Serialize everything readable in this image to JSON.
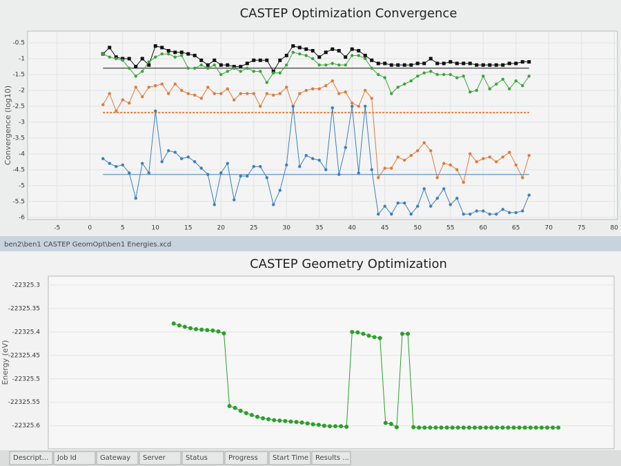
{
  "chart_data": [
    {
      "type": "line",
      "title": "CASTEP Optimization Convergence",
      "y_label": "Convergence (log10)",
      "xlim": [
        -9.5,
        80.5
      ],
      "xticks": [
        -5,
        0,
        5,
        10,
        15,
        20,
        25,
        30,
        35,
        40,
        45,
        50,
        55,
        60,
        65,
        70,
        75,
        80
      ],
      "ylim": [
        -6.07,
        -0.13
      ],
      "yticks": [
        -0.5,
        -1,
        -1.5,
        -2,
        -2.5,
        -3,
        -3.5,
        -4,
        -4.5,
        -5,
        -5.5,
        -6
      ],
      "grid": true,
      "x": [
        2,
        3,
        4,
        5,
        6,
        7,
        8,
        9,
        10,
        11,
        12,
        13,
        14,
        15,
        16,
        17,
        18,
        19,
        20,
        21,
        22,
        23,
        24,
        25,
        26,
        27,
        28,
        29,
        30,
        31,
        32,
        33,
        34,
        35,
        36,
        37,
        38,
        39,
        40,
        41,
        42,
        43,
        44,
        45,
        46,
        47,
        48,
        49,
        50,
        51,
        52,
        53,
        54,
        55,
        56,
        57,
        58,
        59,
        60,
        61,
        62,
        63,
        64,
        65,
        66,
        67
      ],
      "series": [
        {
          "color": "#111111",
          "marker": "square",
          "threshold": -1.3,
          "threshold_style": "solid",
          "values": [
            -0.85,
            -0.65,
            -0.95,
            -1.0,
            -1.0,
            -1.25,
            -1.0,
            -1.2,
            -0.6,
            -0.65,
            -0.75,
            -0.8,
            -0.8,
            -0.85,
            -0.9,
            -1.05,
            -1.2,
            -1.05,
            -1.2,
            -1.2,
            -1.25,
            -1.25,
            -1.15,
            -1.05,
            -1.05,
            -1.05,
            -1.4,
            -1.05,
            -0.9,
            -0.6,
            -0.65,
            -0.7,
            -0.75,
            -0.95,
            -0.8,
            -0.7,
            -0.75,
            -0.95,
            -0.7,
            -0.75,
            -0.9,
            -1.05,
            -1.15,
            -1.15,
            -1.2,
            -1.2,
            -1.2,
            -1.2,
            -1.15,
            -1.15,
            -1.0,
            -1.15,
            -1.15,
            -1.1,
            -1.15,
            -1.15,
            -1.15,
            -1.2,
            -1.2,
            -1.2,
            -1.2,
            -1.2,
            -1.15,
            -1.15,
            -1.1,
            -1.1
          ]
        },
        {
          "color": "#3aa43a",
          "marker": "circle",
          "values": [
            -0.85,
            -0.95,
            -1.0,
            -1.05,
            -1.3,
            -1.55,
            -1.4,
            -1.1,
            -0.95,
            -0.85,
            -0.85,
            -0.95,
            -0.9,
            -1.3,
            -1.3,
            -1.2,
            -1.3,
            -1.2,
            -1.5,
            -1.4,
            -1.3,
            -1.4,
            -1.3,
            -1.4,
            -1.4,
            -1.75,
            -1.45,
            -1.45,
            -1.2,
            -0.8,
            -0.85,
            -0.9,
            -1.0,
            -1.2,
            -1.2,
            -1.15,
            -1.2,
            -1.2,
            -0.9,
            -0.9,
            -1.0,
            -1.3,
            -1.5,
            -1.6,
            -2.1,
            -1.9,
            -1.8,
            -1.7,
            -1.55,
            -1.45,
            -1.4,
            -1.5,
            -1.5,
            -1.5,
            -1.6,
            -1.55,
            -2.05,
            -2.0,
            -1.55,
            -1.95,
            -1.8,
            -1.65,
            -1.95,
            -1.7,
            -1.85,
            -1.55
          ]
        },
        {
          "color": "#e07a3c",
          "marker": "circle",
          "threshold": -2.7,
          "threshold_style": "dashed",
          "values": [
            -2.45,
            -2.1,
            -2.65,
            -2.3,
            -2.4,
            -1.9,
            -2.2,
            -1.9,
            -1.85,
            -1.8,
            -2.1,
            -1.8,
            -2.0,
            -2.1,
            -2.15,
            -2.25,
            -1.9,
            -2.1,
            -2.1,
            -1.95,
            -2.3,
            -2.1,
            -2.1,
            -2.1,
            -2.5,
            -2.1,
            -2.15,
            -2.1,
            -1.9,
            -2.5,
            -2.1,
            -2.0,
            -1.95,
            -1.95,
            -1.85,
            -1.7,
            -2.1,
            -2.05,
            -2.4,
            -2.5,
            -2.0,
            -2.25,
            -4.75,
            -4.45,
            -4.45,
            -4.1,
            -4.2,
            -4.05,
            -3.9,
            -3.65,
            -3.9,
            -4.75,
            -4.3,
            -4.35,
            -4.5,
            -4.9,
            -4.0,
            -4.25,
            -4.15,
            -4.1,
            -4.25,
            -4.1,
            -3.95,
            -4.35,
            -4.75,
            -4.05
          ]
        },
        {
          "color": "#3a7fc4",
          "marker": "circle",
          "threshold": -4.65,
          "threshold_style": "solid",
          "values": [
            -4.15,
            -4.3,
            -4.4,
            -4.35,
            -4.6,
            -5.4,
            -4.3,
            -4.6,
            -2.65,
            -4.25,
            -3.9,
            -3.95,
            -4.15,
            -4.1,
            -4.25,
            -4.45,
            -4.65,
            -5.6,
            -4.6,
            -4.3,
            -5.45,
            -4.7,
            -4.7,
            -4.4,
            -4.4,
            -4.75,
            -5.6,
            -5.15,
            -4.35,
            -2.5,
            -4.4,
            -4.05,
            -4.15,
            -4.2,
            -4.5,
            -2.55,
            -4.65,
            -3.8,
            -2.5,
            -4.6,
            -2.5,
            -4.5,
            -5.9,
            -5.65,
            -5.9,
            -5.55,
            -5.55,
            -5.9,
            -5.65,
            -5.1,
            -5.65,
            -5.4,
            -5.1,
            -5.6,
            -5.4,
            -5.9,
            -5.9,
            -5.8,
            -5.8,
            -5.9,
            -5.9,
            -5.75,
            -5.85,
            -5.85,
            -5.8,
            -5.3
          ]
        }
      ]
    },
    {
      "type": "line",
      "title": "CASTEP Geometry Optimization",
      "y_label": "Energy (eV)",
      "xlim": [
        -21.5,
        80
      ],
      "ylim": [
        -22325.649,
        -22325.281
      ],
      "yticks": [
        -22325.3,
        -22325.35,
        -22325.4,
        -22325.45,
        -22325.5,
        -22325.55,
        -22325.6
      ],
      "grid": true,
      "x": [
        1,
        2,
        3,
        4,
        5,
        6,
        7,
        8,
        9,
        10,
        11,
        12,
        13,
        14,
        15,
        16,
        17,
        18,
        19,
        20,
        21,
        22,
        23,
        24,
        25,
        26,
        27,
        28,
        29,
        30,
        31,
        32,
        33,
        34,
        35,
        36,
        37,
        38,
        39,
        40,
        41,
        42,
        43,
        44,
        45,
        46,
        47,
        48,
        49,
        50,
        51,
        52,
        53,
        54,
        55,
        56,
        57,
        58,
        59,
        60,
        61,
        62,
        63,
        64,
        65,
        66,
        67,
        68,
        69,
        70
      ],
      "series": [
        {
          "color": "#2aa02a",
          "marker": "circle",
          "values": [
            -22325.382,
            -22325.386,
            -22325.389,
            -22325.392,
            -22325.394,
            -22325.395,
            -22325.396,
            -22325.397,
            -22325.399,
            -22325.403,
            -22325.558,
            -22325.562,
            -22325.568,
            -22325.573,
            -22325.577,
            -22325.581,
            -22325.584,
            -22325.586,
            -22325.588,
            -22325.589,
            -22325.59,
            -22325.591,
            -22325.592,
            -22325.593,
            -22325.595,
            -22325.597,
            -22325.598,
            -22325.6,
            -22325.601,
            -22325.601,
            -22325.601,
            -22325.602,
            -22325.4,
            -22325.401,
            -22325.404,
            -22325.408,
            -22325.411,
            -22325.413,
            -22325.594,
            -22325.596,
            -22325.603,
            -22325.404,
            -22325.404,
            -22325.603,
            -22325.604,
            -22325.604,
            -22325.604,
            -22325.604,
            -22325.604,
            -22325.604,
            -22325.604,
            -22325.604,
            -22325.604,
            -22325.604,
            -22325.604,
            -22325.604,
            -22325.604,
            -22325.604,
            -22325.604,
            -22325.604,
            -22325.604,
            -22325.604,
            -22325.604,
            -22325.604,
            -22325.604,
            -22325.604,
            -22325.604,
            -22325.604,
            -22325.604,
            -22325.604
          ]
        }
      ]
    }
  ],
  "window": {
    "path_title": "ben2\\ben1 CASTEP GeomOpt\\ben1 Energies.xcd"
  },
  "jobs_table": {
    "headers": [
      "Descript...",
      "Job Id",
      "Gateway",
      "Server",
      "Status",
      "Progress",
      "Start Time",
      "Results ..."
    ]
  }
}
